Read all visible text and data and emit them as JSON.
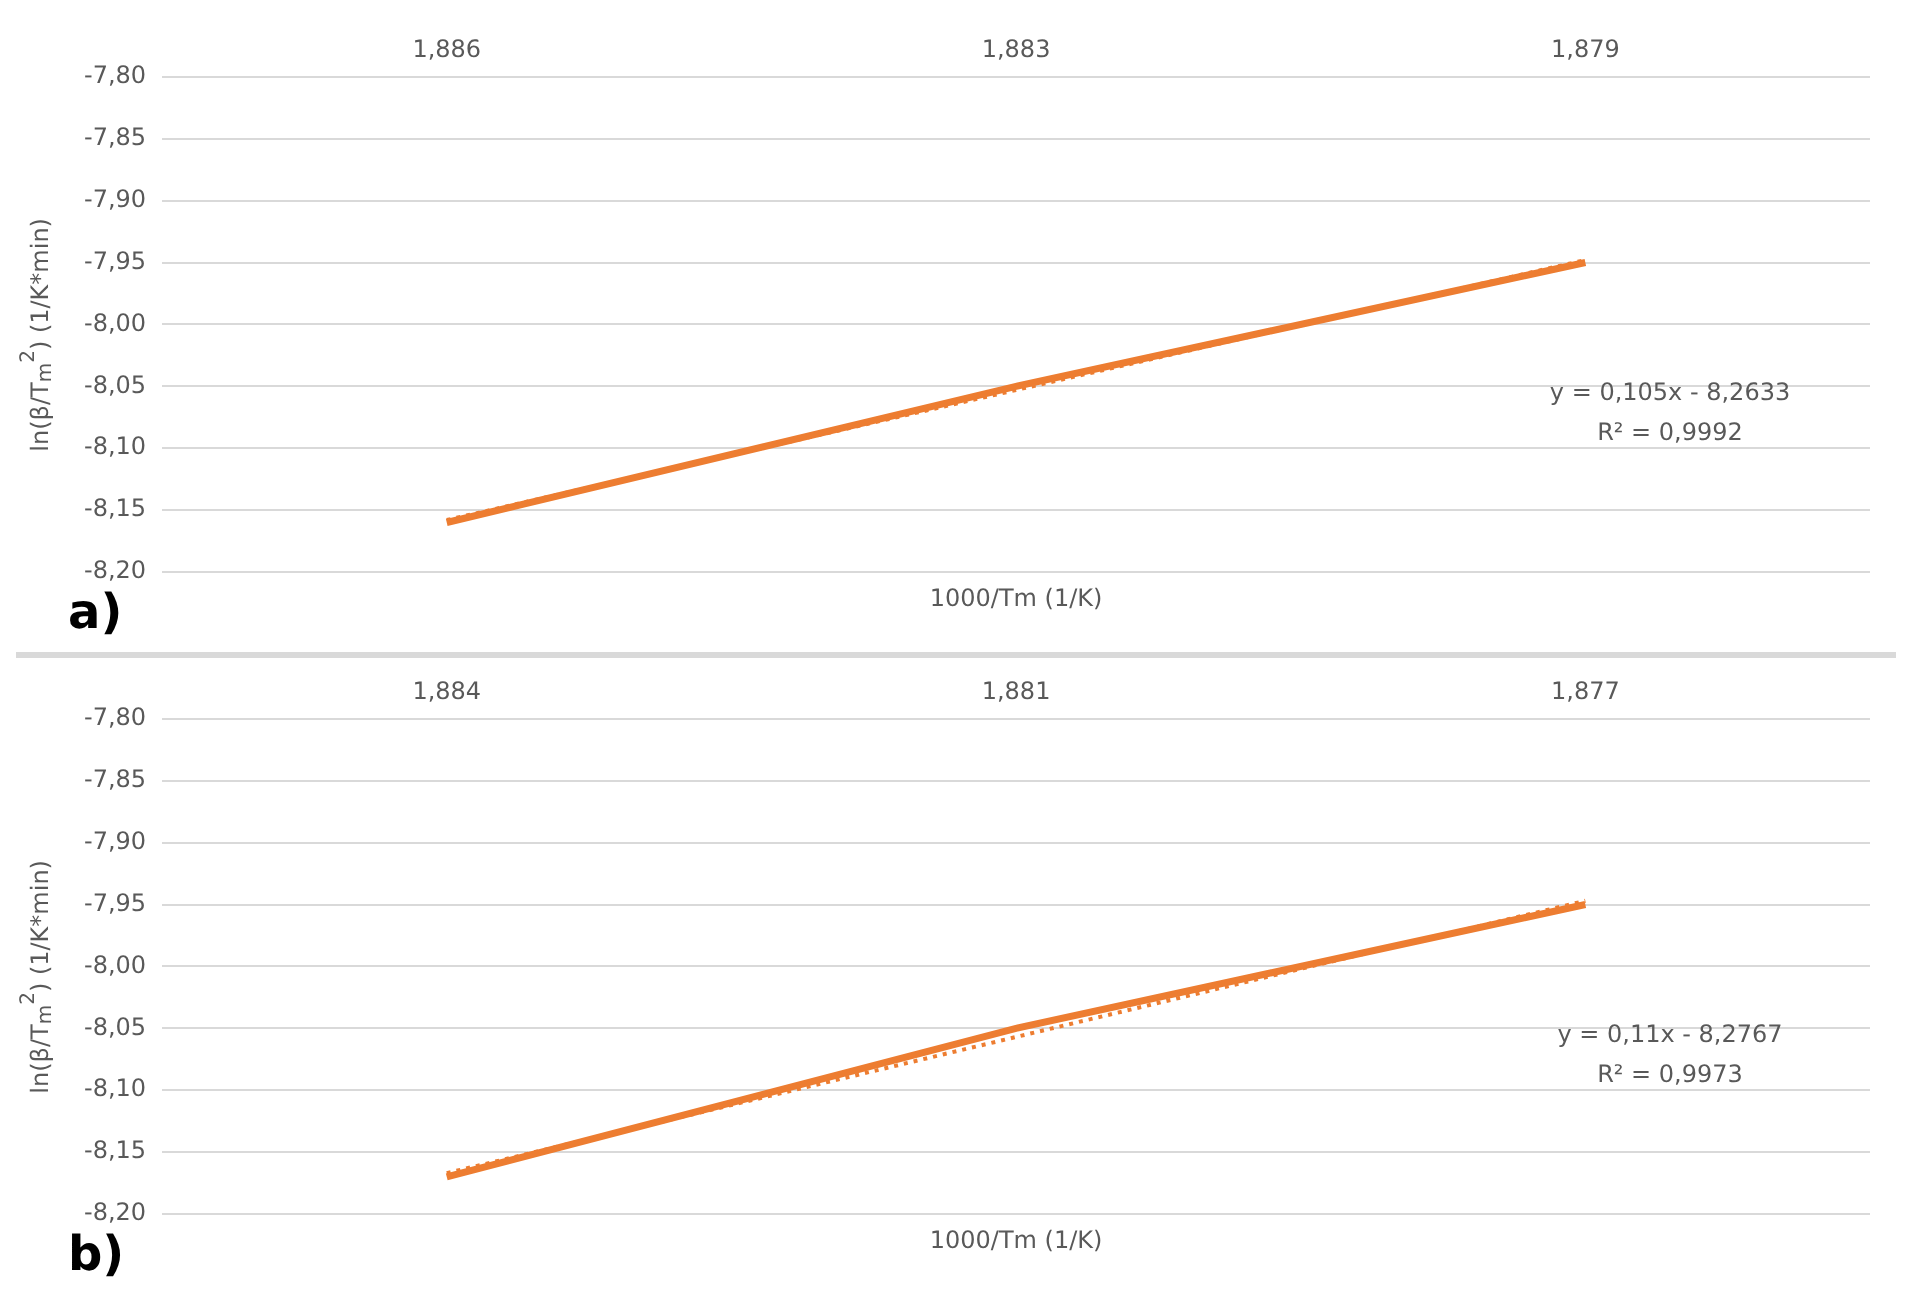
{
  "chart_data": [
    {
      "type": "line",
      "xlabel": "1000/Tm (1/K)",
      "ylabel": "ln(β/T$_{m}$$^{2}$) (1/K*min)",
      "categories": [
        "1,886",
        "1,883",
        "1,879"
      ],
      "series": [
        {
          "color": "#ed7d31",
          "values": [
            -8.16,
            -8.05,
            -7.95
          ],
          "line_style": "solid"
        },
        {
          "color": "#ed7d31",
          "values": [
            -8.158,
            -8.053,
            -7.948
          ],
          "line_style": "dotted"
        }
      ],
      "ylim": [
        -8.2,
        -7.8
      ],
      "yticks": [
        {
          "value": -8.2,
          "label": "-8,20"
        },
        {
          "value": -8.15,
          "label": "-8,15"
        },
        {
          "value": -8.1,
          "label": "-8,10"
        },
        {
          "value": -8.05,
          "label": "-8,05"
        },
        {
          "value": -8.0,
          "label": "-8,00"
        },
        {
          "value": -7.95,
          "label": "-7,95"
        },
        {
          "value": -7.9,
          "label": "-7,90"
        },
        {
          "value": -7.85,
          "label": "-7,85"
        },
        {
          "value": -7.8,
          "label": "-7,80"
        }
      ],
      "grid": "y",
      "marker": "none",
      "annotations": [
        "a)",
        "y = 0,105x - 8,2633",
        "R² = 0,9992"
      ]
    },
    {
      "type": "line",
      "xlabel": "1000/Tm (1/K)",
      "ylabel": "ln(β/T$_{m}$$^{2}$) (1/K*min)",
      "categories": [
        "1,884",
        "1,881",
        "1,877"
      ],
      "series": [
        {
          "color": "#ed7d31",
          "values": [
            -8.17,
            -8.05,
            -7.95
          ],
          "line_style": "solid"
        },
        {
          "color": "#ed7d31",
          "values": [
            -8.167,
            -8.057,
            -7.947
          ],
          "line_style": "dotted"
        }
      ],
      "ylim": [
        -8.2,
        -7.8
      ],
      "yticks": [
        {
          "value": -8.2,
          "label": "-8,20"
        },
        {
          "value": -8.15,
          "label": "-8,15"
        },
        {
          "value": -8.1,
          "label": "-8,10"
        },
        {
          "value": -8.05,
          "label": "-8,05"
        },
        {
          "value": -8.0,
          "label": "-8,00"
        },
        {
          "value": -7.95,
          "label": "-7,95"
        },
        {
          "value": -7.9,
          "label": "-7,90"
        },
        {
          "value": -7.85,
          "label": "-7,85"
        },
        {
          "value": -7.8,
          "label": "-7,80"
        }
      ],
      "grid": "y",
      "marker": "none",
      "annotations": [
        "b)",
        "y = 0,11x - 8,2767",
        "R² = 0,9973"
      ]
    }
  ]
}
